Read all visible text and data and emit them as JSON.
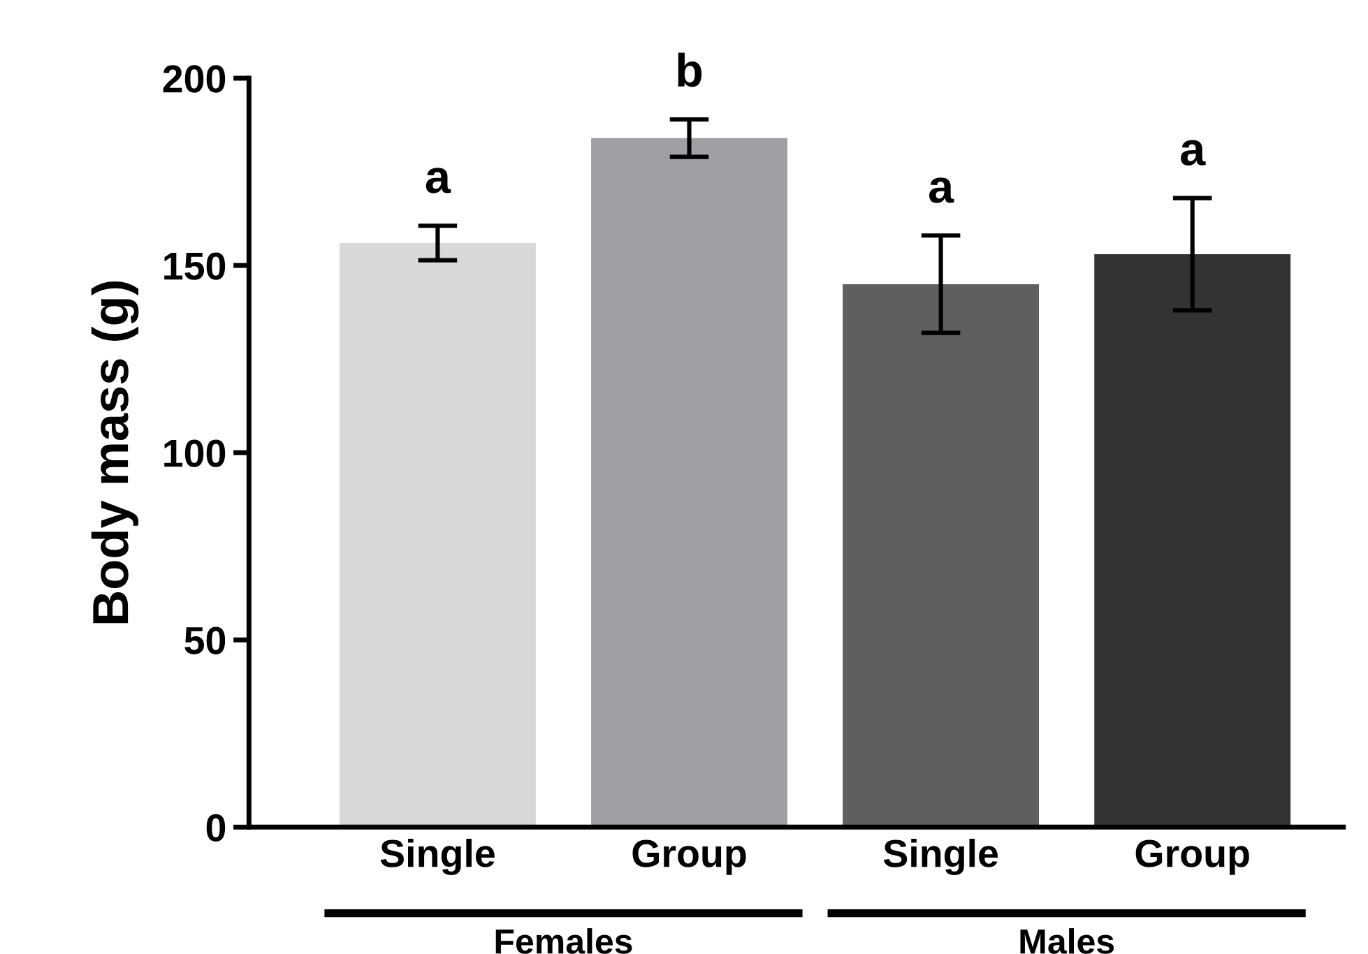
{
  "chart_data": {
    "type": "bar",
    "ylabel": "Body mass (g)",
    "categories": [
      "Single",
      "Group",
      "Single",
      "Group"
    ],
    "values": [
      156,
      184,
      145,
      153
    ],
    "errors": [
      4.6,
      5,
      13,
      15
    ],
    "colors": [
      "#d9d9d9",
      "#a0a0a4",
      "#5f5f5f",
      "#333333"
    ],
    "value_labels": [
      "a",
      "b",
      "a",
      "a"
    ],
    "annotations": [
      "Females",
      "Males"
    ],
    "ylim": [
      0,
      200
    ],
    "yticks": [
      0,
      50,
      100,
      150,
      200
    ],
    "grid": false
  }
}
